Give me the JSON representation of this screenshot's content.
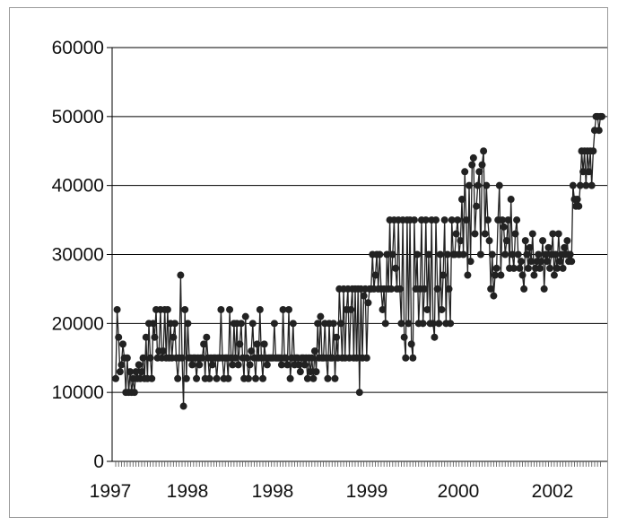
{
  "chart_data": {
    "type": "line",
    "title": "",
    "xlabel": "",
    "ylabel": "",
    "ylim": [
      0,
      60000
    ],
    "y_ticks": [
      "0",
      "10000",
      "20000",
      "30000",
      "40000",
      "50000",
      "60000"
    ],
    "x_tick_labels": [
      "1997",
      "1998",
      "1998",
      "1999",
      "2000",
      "2002"
    ],
    "grid": "horizontal",
    "legend": "none",
    "colors": {
      "series": "#222222",
      "grid": "#000000",
      "axis": "#000000"
    },
    "series": [
      {
        "marker": "circle",
        "values": [
          12000,
          22000,
          18000,
          13000,
          14000,
          17000,
          15000,
          10000,
          15000,
          10000,
          13000,
          10000,
          12000,
          10000,
          13000,
          12000,
          14000,
          12000,
          13000,
          15000,
          12000,
          18000,
          12000,
          20000,
          15000,
          12000,
          20000,
          18000,
          22000,
          15000,
          16000,
          22000,
          15000,
          16000,
          22000,
          15000,
          22000,
          15000,
          20000,
          15000,
          18000,
          20000,
          15000,
          12000,
          15000,
          27000,
          15000,
          8000,
          22000,
          12000,
          20000,
          15000,
          15000,
          14000,
          15000,
          15000,
          12000,
          15000,
          14000,
          15000,
          15000,
          17000,
          12000,
          18000,
          15000,
          12000,
          15000,
          14000,
          15000,
          15000,
          12000,
          15000,
          15000,
          22000,
          15000,
          12000,
          15000,
          15000,
          12000,
          22000,
          15000,
          14000,
          20000,
          15000,
          20000,
          14000,
          17000,
          20000,
          15000,
          12000,
          21000,
          15000,
          12000,
          14000,
          16000,
          20000,
          15000,
          12000,
          17000,
          15000,
          22000,
          15000,
          12000,
          17000,
          15000,
          14000,
          15000,
          15000,
          15000,
          15000,
          20000,
          15000,
          15000,
          15000,
          15000,
          14000,
          22000,
          15000,
          15000,
          14000,
          22000,
          12000,
          15000,
          20000,
          14000,
          15000,
          15000,
          14000,
          13000,
          15000,
          15000,
          14000,
          15000,
          12000,
          15000,
          13000,
          15000,
          12000,
          16000,
          13000,
          20000,
          15000,
          21000,
          15000,
          15000,
          20000,
          15000,
          12000,
          20000,
          15000,
          15000,
          20000,
          12000,
          18000,
          15000,
          25000,
          20000,
          15000,
          25000,
          15000,
          22000,
          25000,
          15000,
          22000,
          25000,
          15000,
          25000,
          15000,
          25000,
          10000,
          25000,
          15000,
          24000,
          25000,
          15000,
          23000,
          25000,
          25000,
          30000,
          25000,
          27000,
          30000,
          25000,
          30000,
          25000,
          22000,
          25000,
          20000,
          30000,
          25000,
          35000,
          25000,
          30000,
          35000,
          28000,
          25000,
          35000,
          25000,
          20000,
          35000,
          18000,
          15000,
          35000,
          20000,
          35000,
          17000,
          15000,
          35000,
          25000,
          30000,
          20000,
          25000,
          35000,
          20000,
          25000,
          35000,
          22000,
          30000,
          20000,
          35000,
          20000,
          18000,
          35000,
          25000,
          20000,
          30000,
          22000,
          27000,
          35000,
          20000,
          30000,
          25000,
          20000,
          35000,
          30000,
          30000,
          33000,
          35000,
          30000,
          32000,
          38000,
          30000,
          42000,
          35000,
          27000,
          40000,
          29000,
          43000,
          44000,
          33000,
          37000,
          40000,
          42000,
          30000,
          43000,
          45000,
          33000,
          40000,
          35000,
          32000,
          25000,
          30000,
          24000,
          27000,
          28000,
          35000,
          40000,
          27000,
          35000,
          34000,
          30000,
          32000,
          35000,
          28000,
          38000,
          30000,
          28000,
          33000,
          35000,
          30000,
          28000,
          29000,
          27000,
          25000,
          32000,
          30000,
          28000,
          31000,
          29000,
          33000,
          27000,
          28000,
          29000,
          30000,
          28000,
          29000,
          32000,
          25000,
          30000,
          29000,
          31000,
          28000,
          30000,
          33000,
          27000,
          30000,
          28000,
          33000,
          29000,
          30000,
          28000,
          31000,
          30000,
          32000,
          29000,
          30000,
          29000,
          40000,
          38000,
          37000,
          38000,
          37000,
          40000,
          45000,
          42000,
          45000,
          40000,
          45000,
          42000,
          45000,
          40000,
          45000,
          48000,
          50000,
          50000,
          48000,
          50000,
          50000
        ]
      }
    ]
  }
}
